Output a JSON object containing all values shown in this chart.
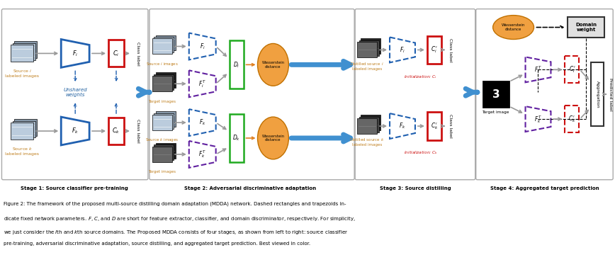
{
  "fig_width": 8.68,
  "fig_height": 3.77,
  "dpi": 100,
  "bg_color": "#ffffff",
  "blue_solid": "#2060b0",
  "red_solid": "#cc1010",
  "purple_dashed": "#6020a0",
  "green_solid": "#20aa20",
  "orange_ellipse": "#f0a040",
  "arrow_blue": "#4090d0",
  "gray_arrow": "#999999",
  "stage_labels": [
    "Stage 1: Source classifier pre-training",
    "Stage 2: Adversarial discriminative adaptation",
    "Stage 3: Source distilling",
    "Stage 4: Aggregated target prediction"
  ],
  "caption_lines": [
    "Figure 2: The framework of the proposed multi-source distilling domain adaptation (MDDA) network. Dashed rectangles and trapezoids in-",
    "dicate fixed network parameters. $F$, $C$, and $D$ are short for feature extractor, classifier, and domain discriminator, respectively. For simplicity,",
    "we just consider the $i$th and $k$th source domains. The Proposed MDDA consists of four stages, as shown from left to right: source classifier",
    "pre-training, adversarial discriminative adaptation, source distilling, and aggregated target prediction. Best viewed in color."
  ]
}
